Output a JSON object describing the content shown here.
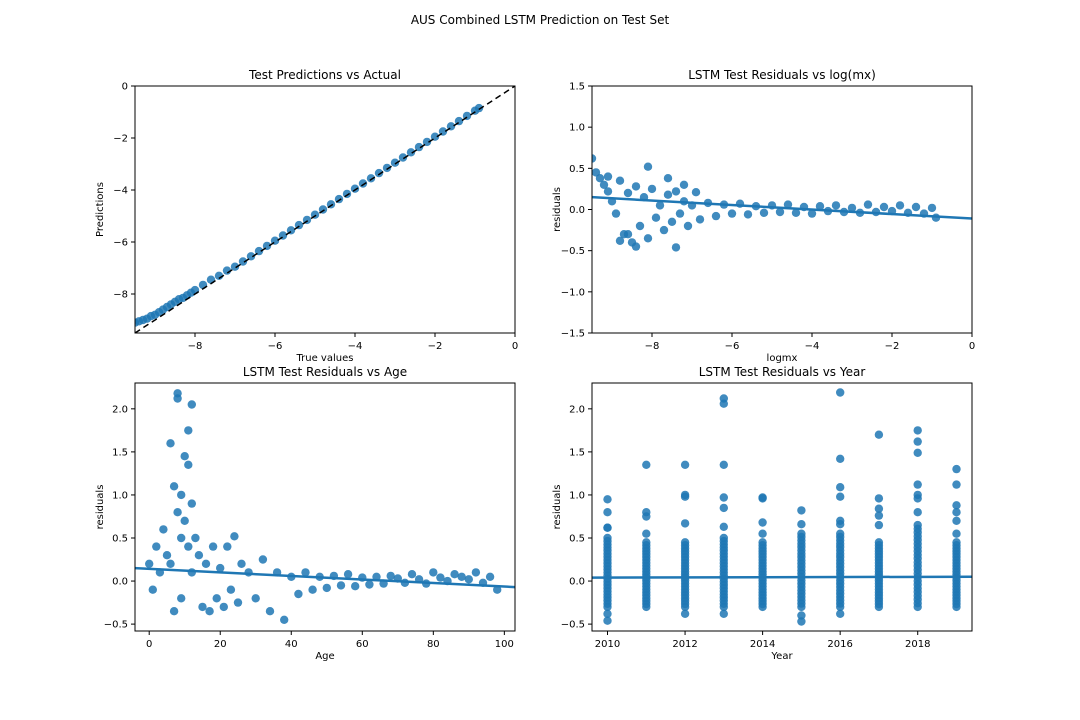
{
  "figure": {
    "suptitle": "AUS Combined LSTM Prediction on Test Set"
  },
  "chart_data": [
    {
      "id": "p1",
      "type": "scatter",
      "title": "Test Predictions vs Actual",
      "xlabel": "True values",
      "ylabel": "Predictions",
      "xlim": [
        -9.5,
        0
      ],
      "ylim": [
        -9.5,
        0
      ],
      "xticks": [
        -8,
        -6,
        -4,
        -2,
        0
      ],
      "xtick_labels": [
        "−8",
        "−6",
        "−4",
        "−2",
        "0"
      ],
      "yticks": [
        -8,
        -6,
        -4,
        -2,
        0
      ],
      "ytick_labels": [
        "−8",
        "−6",
        "−4",
        "−2",
        "0"
      ],
      "color": "#1f77b4",
      "reference_line": {
        "style": "dashed",
        "color": "#000000",
        "x": [
          -9.5,
          0
        ],
        "y": [
          -9.5,
          0
        ]
      },
      "series": [
        {
          "x": [
            -9.5,
            -9.4,
            -9.3,
            -9.2,
            -9.1,
            -9.0,
            -8.9,
            -8.8,
            -8.7,
            -8.6,
            -8.5,
            -8.4,
            -8.3,
            -8.2,
            -8.1,
            -8.0,
            -7.8,
            -7.6,
            -7.4,
            -7.2,
            -7.0,
            -6.8,
            -6.6,
            -6.4,
            -6.2,
            -6.0,
            -5.8,
            -5.6,
            -5.4,
            -5.2,
            -5.0,
            -4.8,
            -4.6,
            -4.4,
            -4.2,
            -4.0,
            -3.8,
            -3.6,
            -3.4,
            -3.2,
            -3.0,
            -2.8,
            -2.6,
            -2.4,
            -2.2,
            -2.0,
            -1.8,
            -1.6,
            -1.4,
            -1.2,
            -1.0,
            -0.9
          ],
          "y": [
            -9.1,
            -9.05,
            -9.0,
            -8.95,
            -8.85,
            -8.8,
            -8.7,
            -8.6,
            -8.5,
            -8.4,
            -8.3,
            -8.2,
            -8.15,
            -8.05,
            -7.95,
            -7.85,
            -7.65,
            -7.45,
            -7.3,
            -7.1,
            -6.95,
            -6.75,
            -6.55,
            -6.35,
            -6.15,
            -5.95,
            -5.75,
            -5.55,
            -5.35,
            -5.15,
            -4.95,
            -4.75,
            -4.55,
            -4.35,
            -4.15,
            -3.95,
            -3.75,
            -3.55,
            -3.35,
            -3.15,
            -2.95,
            -2.75,
            -2.55,
            -2.35,
            -2.15,
            -1.95,
            -1.75,
            -1.55,
            -1.35,
            -1.15,
            -0.95,
            -0.85
          ]
        }
      ]
    },
    {
      "id": "p2",
      "type": "scatter",
      "title": "LSTM Test Residuals vs log(mx)",
      "xlabel": "logmx",
      "ylabel": "residuals",
      "xlim": [
        -9.5,
        0
      ],
      "ylim": [
        -1.5,
        1.5
      ],
      "xticks": [
        -8,
        -6,
        -4,
        -2,
        0
      ],
      "xtick_labels": [
        "−8",
        "−6",
        "−4",
        "−2",
        "0"
      ],
      "yticks": [
        -1.5,
        -1.0,
        -0.5,
        0.0,
        0.5,
        1.0,
        1.5
      ],
      "ytick_labels": [
        "−1.5",
        "−1.0",
        "−0.5",
        "0.0",
        "0.5",
        "1.0",
        "1.5"
      ],
      "color": "#1f77b4",
      "regression_line": {
        "x": [
          -9.5,
          0
        ],
        "y": [
          0.15,
          -0.11
        ]
      },
      "series": [
        {
          "x": [
            -9.5,
            -9.4,
            -9.3,
            -9.2,
            -9.1,
            -9.0,
            -8.9,
            -8.8,
            -8.7,
            -8.6,
            -8.5,
            -8.4,
            -8.3,
            -8.2,
            -8.1,
            -8.0,
            -7.9,
            -7.8,
            -7.7,
            -7.6,
            -7.5,
            -7.4,
            -7.3,
            -7.2,
            -7.1,
            -7.0,
            -6.8,
            -6.6,
            -6.4,
            -6.2,
            -6.0,
            -5.8,
            -5.6,
            -5.4,
            -5.2,
            -5.0,
            -4.8,
            -4.6,
            -4.4,
            -4.2,
            -4.0,
            -3.8,
            -3.6,
            -3.4,
            -3.2,
            -3.0,
            -2.8,
            -2.6,
            -2.4,
            -2.2,
            -2.0,
            -1.8,
            -1.6,
            -1.4,
            -1.2,
            -1.0,
            -0.9,
            -8.1,
            -7.6,
            -7.2,
            -8.8,
            -8.4,
            -7.4,
            -6.9,
            -9.1,
            -8.6
          ],
          "y": [
            0.62,
            0.45,
            0.38,
            0.3,
            0.22,
            0.1,
            -0.05,
            0.35,
            -0.3,
            0.2,
            -0.4,
            0.28,
            -0.2,
            0.15,
            -0.35,
            0.25,
            -0.1,
            0.05,
            -0.25,
            0.18,
            -0.15,
            0.22,
            -0.05,
            0.1,
            -0.2,
            0.05,
            -0.12,
            0.08,
            -0.08,
            0.06,
            -0.05,
            0.07,
            -0.06,
            0.04,
            -0.04,
            0.05,
            -0.03,
            0.06,
            -0.04,
            0.03,
            -0.05,
            0.04,
            -0.02,
            0.05,
            -0.03,
            0.02,
            -0.04,
            0.06,
            -0.03,
            0.03,
            -0.02,
            0.05,
            -0.04,
            0.03,
            -0.05,
            0.02,
            -0.1,
            0.52,
            0.38,
            0.3,
            -0.38,
            -0.45,
            -0.46,
            0.21,
            0.4,
            -0.3
          ]
        }
      ]
    },
    {
      "id": "p3",
      "type": "scatter",
      "title": "LSTM Test  Residuals vs Age",
      "xlabel": "Age",
      "ylabel": "residuals",
      "xlim": [
        -4,
        103
      ],
      "ylim": [
        -0.58,
        2.3
      ],
      "xticks": [
        0,
        20,
        40,
        60,
        80,
        100
      ],
      "xtick_labels": [
        "0",
        "20",
        "40",
        "60",
        "80",
        "100"
      ],
      "yticks": [
        -0.5,
        0.0,
        0.5,
        1.0,
        1.5,
        2.0
      ],
      "ytick_labels": [
        "−0.5",
        "0.0",
        "0.5",
        "1.0",
        "1.5",
        "2.0"
      ],
      "color": "#1f77b4",
      "regression_line": {
        "x": [
          -4,
          103
        ],
        "y": [
          0.15,
          -0.07
        ]
      },
      "series": [
        {
          "x": [
            0,
            1,
            2,
            3,
            4,
            5,
            6,
            6,
            7,
            7,
            8,
            8,
            8,
            9,
            9,
            9,
            10,
            10,
            11,
            11,
            11,
            12,
            12,
            12,
            13,
            14,
            15,
            16,
            17,
            18,
            19,
            20,
            21,
            22,
            23,
            24,
            25,
            26,
            28,
            30,
            32,
            34,
            36,
            38,
            40,
            42,
            44,
            46,
            48,
            50,
            52,
            54,
            56,
            58,
            60,
            62,
            64,
            66,
            68,
            70,
            72,
            74,
            76,
            78,
            80,
            82,
            84,
            86,
            88,
            90,
            92,
            94,
            96,
            98
          ],
          "y": [
            0.2,
            -0.1,
            0.4,
            0.1,
            0.6,
            0.3,
            1.6,
            0.2,
            -0.35,
            1.1,
            2.18,
            2.12,
            0.8,
            1.0,
            0.5,
            -0.2,
            1.45,
            0.7,
            1.75,
            1.35,
            0.4,
            2.05,
            0.9,
            0.1,
            0.5,
            0.3,
            -0.3,
            0.2,
            -0.35,
            0.4,
            -0.2,
            0.15,
            -0.3,
            0.4,
            -0.1,
            0.52,
            -0.25,
            0.2,
            0.1,
            -0.2,
            0.25,
            -0.35,
            0.1,
            -0.45,
            0.05,
            -0.15,
            0.1,
            -0.1,
            0.05,
            -0.08,
            0.06,
            -0.05,
            0.08,
            -0.06,
            0.04,
            -0.04,
            0.05,
            -0.03,
            0.06,
            0.03,
            -0.02,
            0.08,
            0.02,
            -0.03,
            0.1,
            0.04,
            0.0,
            0.08,
            0.05,
            0.02,
            0.1,
            -0.02,
            0.05,
            -0.1
          ]
        }
      ]
    },
    {
      "id": "p4",
      "type": "scatter",
      "title": "LSTM Test  Residuals vs Year",
      "xlabel": "Year",
      "ylabel": "residuals",
      "xlim": [
        2009.6,
        2019.4
      ],
      "ylim": [
        -0.58,
        2.3
      ],
      "xticks": [
        2010,
        2012,
        2014,
        2016,
        2018
      ],
      "xtick_labels": [
        "2010",
        "2012",
        "2014",
        "2016",
        "2018"
      ],
      "yticks": [
        -0.5,
        0.0,
        0.5,
        1.0,
        1.5,
        2.0
      ],
      "ytick_labels": [
        "−0.5",
        "0.0",
        "0.5",
        "1.0",
        "1.5",
        "2.0"
      ],
      "color": "#1f77b4",
      "regression_line": {
        "x": [
          2009.6,
          2019.4
        ],
        "y": [
          0.04,
          0.05
        ]
      },
      "columns": [
        {
          "year": 2010,
          "min": -0.3,
          "max": 0.5,
          "extra": [
            0.95,
            0.8,
            0.62,
            0.62,
            -0.38,
            -0.46
          ]
        },
        {
          "year": 2011,
          "min": -0.3,
          "max": 0.45,
          "extra": [
            1.35,
            0.8,
            0.75,
            0.55
          ]
        },
        {
          "year": 2012,
          "min": -0.3,
          "max": 0.45,
          "extra": [
            1.35,
            1.0,
            0.98,
            0.67,
            -0.38
          ]
        },
        {
          "year": 2013,
          "min": -0.3,
          "max": 0.5,
          "extra": [
            2.12,
            2.06,
            1.35,
            0.97,
            0.85,
            0.63,
            -0.38
          ]
        },
        {
          "year": 2014,
          "min": -0.3,
          "max": 0.45,
          "extra": [
            0.97,
            0.96,
            0.68,
            0.55
          ]
        },
        {
          "year": 2015,
          "min": -0.3,
          "max": 0.55,
          "extra": [
            0.82,
            0.66,
            -0.4,
            -0.47
          ]
        },
        {
          "year": 2016,
          "min": -0.3,
          "max": 0.55,
          "extra": [
            2.19,
            1.42,
            1.09,
            0.98,
            0.7,
            0.66,
            -0.38
          ]
        },
        {
          "year": 2017,
          "min": -0.3,
          "max": 0.45,
          "extra": [
            1.7,
            0.96,
            0.84,
            0.76,
            0.65
          ]
        },
        {
          "year": 2018,
          "min": -0.3,
          "max": 0.65,
          "extra": [
            1.75,
            1.62,
            1.49,
            1.12,
            1.0,
            0.96,
            0.8
          ]
        },
        {
          "year": 2019,
          "min": -0.3,
          "max": 0.45,
          "extra": [
            1.3,
            1.12,
            0.88,
            0.8,
            0.7,
            0.55
          ]
        }
      ]
    }
  ]
}
